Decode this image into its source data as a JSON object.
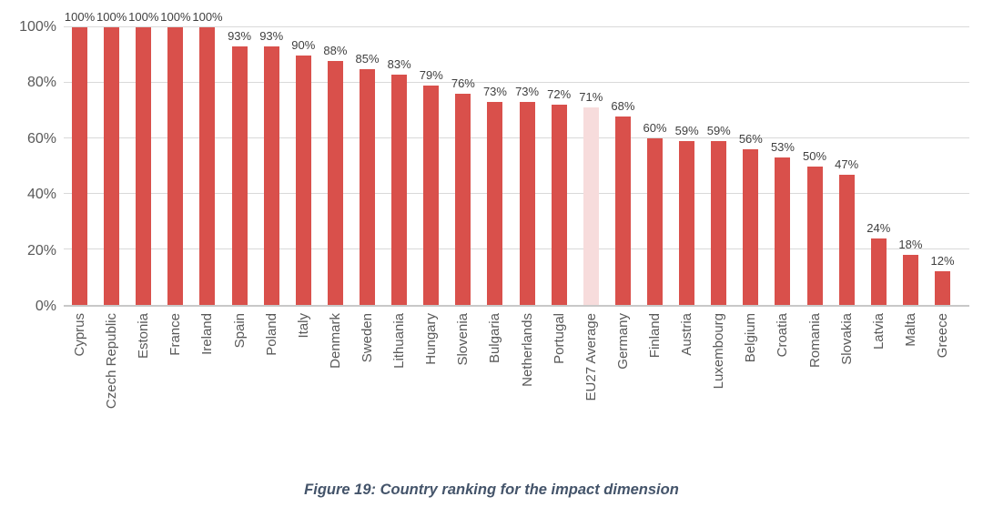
{
  "chart_data": {
    "type": "bar",
    "title": "",
    "xlabel": "",
    "ylabel": "",
    "categories": [
      "Cyprus",
      "Czech Republic",
      "Estonia",
      "France",
      "Ireland",
      "Spain",
      "Poland",
      "Italy",
      "Denmark",
      "Sweden",
      "Lithuania",
      "Hungary",
      "Slovenia",
      "Bulgaria",
      "Netherlands",
      "Portugal",
      "EU27 Average",
      "Germany",
      "Finland",
      "Austria",
      "Luxembourg",
      "Belgium",
      "Croatia",
      "Romania",
      "Slovakia",
      "Latvia",
      "Malta",
      "Greece"
    ],
    "values": [
      100,
      100,
      100,
      100,
      100,
      93,
      93,
      90,
      88,
      85,
      83,
      79,
      76,
      73,
      73,
      72,
      71,
      68,
      60,
      59,
      59,
      56,
      53,
      50,
      47,
      24,
      18,
      12
    ],
    "data_labels": [
      "100%",
      "100%",
      "100%",
      "100%",
      "100%",
      "93%",
      "93%",
      "90%",
      "88%",
      "85%",
      "83%",
      "79%",
      "76%",
      "73%",
      "73%",
      "72%",
      "71%",
      "68%",
      "60%",
      "59%",
      "59%",
      "56%",
      "53%",
      "50%",
      "47%",
      "24%",
      "18%",
      "12%"
    ],
    "highlight_index": 16,
    "ylim": [
      0,
      100
    ],
    "ytick_values": [
      0,
      20,
      40,
      60,
      80,
      100
    ],
    "ytick_labels": [
      "0%",
      "20%",
      "40%",
      "60%",
      "80%",
      "100%"
    ],
    "grid": true,
    "legend_position": "none",
    "colors": {
      "bar": "#d9504b",
      "highlight_bar": "#f7dcdc",
      "gridline": "#d9d9d9",
      "axis_text": "#595959",
      "data_label": "#3f3f3f"
    }
  },
  "caption": {
    "text": "Figure 19: Country ranking for the impact dimension",
    "color": "#44546a"
  }
}
